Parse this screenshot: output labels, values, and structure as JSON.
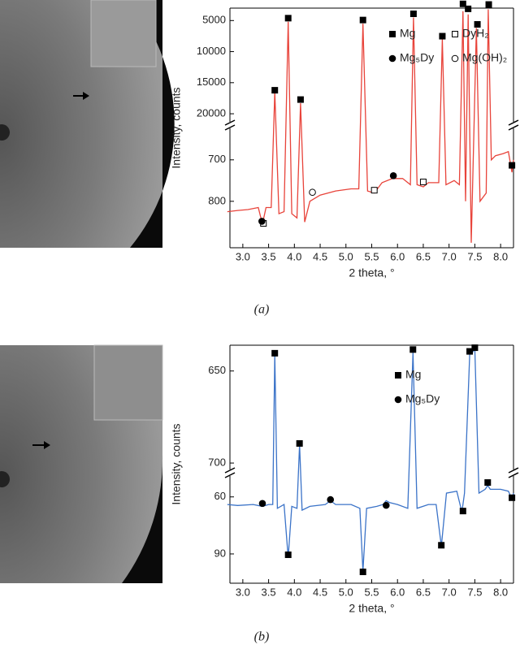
{
  "chart_data": [
    {
      "type": "line",
      "xlabel": "2 theta, °",
      "ylabel": "Intensity, counts",
      "caption": "(a)",
      "xlim": [
        2.75,
        8.25
      ],
      "xticks": [
        {
          "value": 3,
          "label": "3.0"
        },
        {
          "value": 3.5,
          "label": "3.5"
        },
        {
          "value": 4,
          "label": "4.0"
        },
        {
          "value": 4.5,
          "label": "4.5"
        },
        {
          "value": 5,
          "label": "5.0"
        },
        {
          "value": 5.5,
          "label": "5.5"
        },
        {
          "value": 6,
          "label": "6.0"
        },
        {
          "value": 6.5,
          "label": "6.5"
        },
        {
          "value": 7,
          "label": "7.0"
        },
        {
          "value": 7.5,
          "label": "7.5"
        },
        {
          "value": 8,
          "label": "8.0"
        }
      ],
      "y_segments": [
        {
          "ylim": [
            624,
            912
          ],
          "yticks": [
            700,
            800
          ]
        },
        {
          "ylim": [
            3000,
            21300
          ],
          "yticks": [
            5000,
            10000,
            15000,
            20000
          ]
        }
      ],
      "x": [
        2.7,
        2.9,
        3.1,
        3.3,
        3.38,
        3.45,
        3.55,
        3.62,
        3.7,
        3.8,
        3.88,
        3.95,
        4.05,
        4.12,
        4.2,
        4.3,
        4.5,
        4.8,
        5.1,
        5.25,
        5.33,
        5.42,
        5.55,
        5.7,
        5.9,
        6.1,
        6.25,
        6.31,
        6.38,
        6.5,
        6.6,
        6.8,
        6.87,
        6.94,
        7.1,
        7.2,
        7.27,
        7.32,
        7.37,
        7.43,
        7.53,
        7.6,
        7.72,
        7.76,
        7.82,
        7.9,
        8.05,
        8.15,
        8.22,
        8.25
      ],
      "series": [
        {
          "color": "#e8433a",
          "values": [
            825,
            822,
            820,
            815,
            855,
            815,
            815,
            16500,
            830,
            825,
            5200,
            830,
            840,
            18300,
            850,
            800,
            785,
            775,
            770,
            770,
            5500,
            775,
            780,
            755,
            745,
            745,
            760,
            4500,
            760,
            765,
            755,
            755,
            8000,
            760,
            750,
            760,
            3500,
            800,
            4000,
            900,
            6200,
            800,
            780,
            3200,
            700,
            690,
            685,
            680,
            730,
            700
          ]
        }
      ],
      "legend": [
        {
          "label": "Mg",
          "symbol": "filled-square",
          "x": [
            3.62,
            3.88,
            4.12,
            5.33,
            6.31,
            6.87,
            7.27,
            7.37,
            7.55,
            7.77,
            8.22
          ],
          "y": [
            17000,
            5400,
            18500,
            5700,
            4700,
            8300,
            3100,
            3900,
            6400,
            3200,
            725
          ]
        },
        {
          "label": "DyH₂",
          "symbol": "open-square",
          "x": [
            3.4,
            5.55,
            6.5
          ],
          "y": [
            865,
            785,
            765
          ]
        },
        {
          "label": "Mg₅Dy",
          "symbol": "filled-circle",
          "x": [
            3.37,
            5.92
          ],
          "y": [
            860,
            750
          ]
        },
        {
          "label": "Mg(OH)₂",
          "symbol": "open-circle",
          "x": [
            4.35
          ],
          "y": [
            790
          ]
        }
      ]
    },
    {
      "type": "line",
      "xlabel": "2 theta, °",
      "ylabel": "Intensity, counts",
      "caption": "(b)",
      "xlim": [
        2.75,
        8.25
      ],
      "xticks": [
        {
          "value": 3,
          "label": "3.0"
        },
        {
          "value": 3.5,
          "label": "3.5"
        },
        {
          "value": 4,
          "label": "4.0"
        },
        {
          "value": 4.5,
          "label": "4.5"
        },
        {
          "value": 5,
          "label": "5.0"
        },
        {
          "value": 5.5,
          "label": "5.5"
        },
        {
          "value": 6,
          "label": "6.0"
        },
        {
          "value": 6.5,
          "label": "6.5"
        },
        {
          "value": 7,
          "label": "7.0"
        },
        {
          "value": 7.5,
          "label": "7.5"
        },
        {
          "value": 8,
          "label": "8.0"
        }
      ],
      "y_segments": [
        {
          "ylim": [
            49,
            105.4
          ],
          "yticks": [
            60,
            90
          ]
        },
        {
          "ylim": [
            636,
            703.5
          ],
          "yticks": [
            650,
            700
          ]
        }
      ],
      "x": [
        2.7,
        2.9,
        3.2,
        3.38,
        3.5,
        3.58,
        3.62,
        3.67,
        3.8,
        3.88,
        3.95,
        4.05,
        4.1,
        4.15,
        4.3,
        4.6,
        4.7,
        4.8,
        5.1,
        5.27,
        5.33,
        5.4,
        5.6,
        5.72,
        5.78,
        5.85,
        6.0,
        6.2,
        6.3,
        6.38,
        6.6,
        6.75,
        6.85,
        6.95,
        7.15,
        7.25,
        7.3,
        7.4,
        7.45,
        7.5,
        7.58,
        7.7,
        7.75,
        7.8,
        8.0,
        8.15,
        8.22,
        8.25
      ],
      "series": [
        {
          "color": "#3b73c8",
          "values": [
            64,
            64.5,
            64,
            65,
            64,
            64,
            641,
            66,
            64,
            92,
            65,
            66,
            690,
            67,
            65,
            64,
            62,
            64,
            64,
            66,
            99,
            66,
            65,
            64,
            62,
            63,
            64,
            66,
            640,
            66,
            64,
            64,
            86,
            58,
            57,
            68,
            58,
            641,
            640,
            638,
            58,
            56,
            54,
            56,
            56,
            57,
            61,
            58
          ]
        }
      ],
      "legend": [
        {
          "label": "Mg",
          "symbol": "filled-square",
          "x": [
            3.62,
            3.88,
            4.1,
            5.33,
            6.3,
            6.85,
            7.27,
            7.4,
            7.5,
            7.75,
            8.22
          ],
          "y": [
            643,
            93,
            692,
            102,
            641,
            88,
            70,
            642,
            640,
            55,
            63
          ]
        },
        {
          "label": "Mg₅Dy",
          "symbol": "filled-circle",
          "x": [
            3.38,
            4.7,
            5.78
          ],
          "y": [
            66,
            64,
            67
          ]
        }
      ]
    }
  ]
}
